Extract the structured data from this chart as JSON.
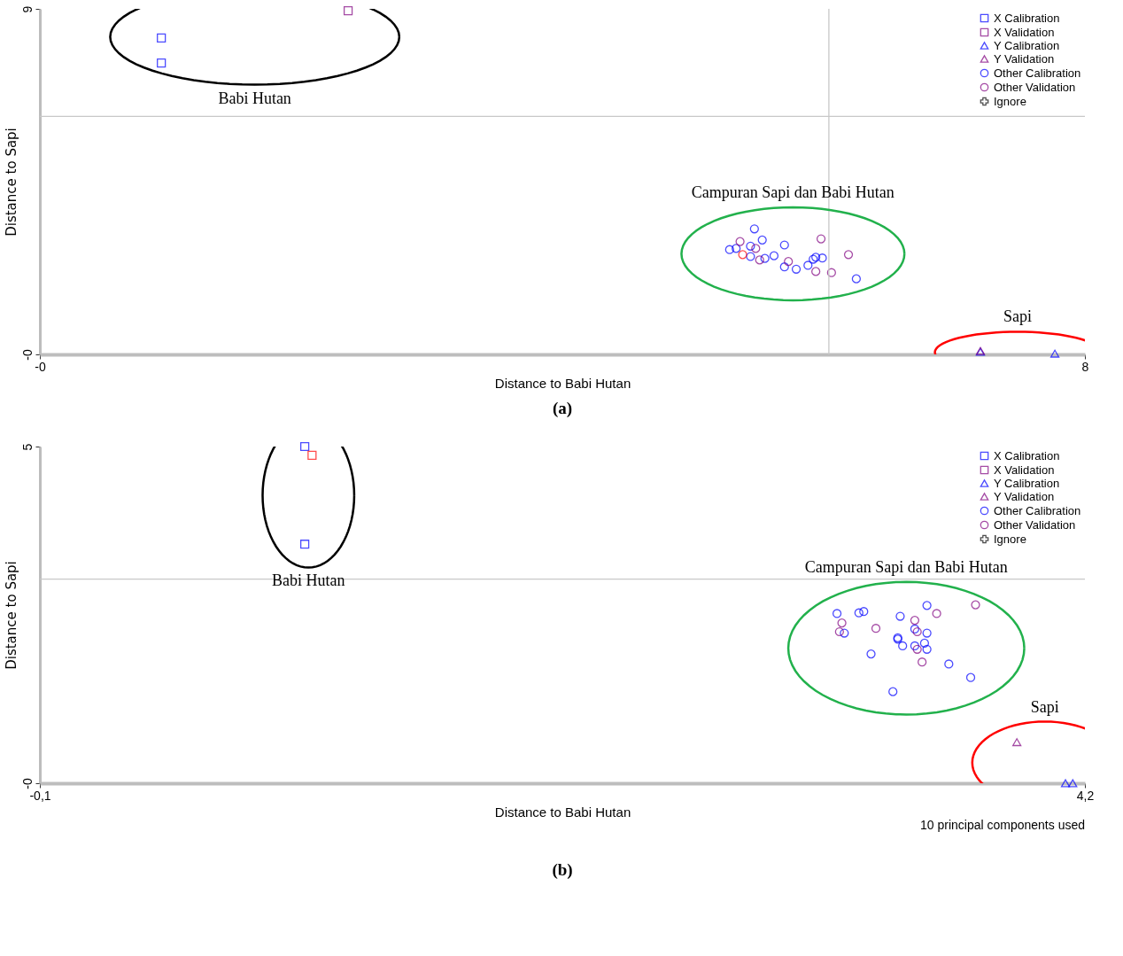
{
  "chart_data": [
    {
      "type": "scatter",
      "title": "(a)",
      "xlabel": "Distance to Babi Hutan",
      "ylabel": "Distance to Sapi",
      "xlim": [
        0,
        8
      ],
      "xticks": [
        {
          "value": 0,
          "label": "-0"
        },
        8
      ],
      "ylim": [
        0,
        9
      ],
      "yticks": [
        {
          "value": 0,
          "label": "-0"
        },
        9
      ],
      "grid": false,
      "legend": "top right",
      "ref_lines": [
        {
          "axis": "y",
          "value": 6.2,
          "color": "#c8c8c8"
        },
        {
          "axis": "x",
          "value": 6.04,
          "color": "#c8c8c8"
        }
      ],
      "annotations": [
        "Babi Hutan",
        "Campuran Sapi dan Babi Hutan",
        "Sapi"
      ],
      "series": [
        {
          "name": "X Calibration",
          "color": "#0000ff",
          "marker": "square",
          "x": [
            0.93,
            0.93
          ],
          "values": [
            8.24,
            7.59
          ]
        },
        {
          "name": "X Validation",
          "color": "#800080",
          "marker": "square",
          "x": [
            2.36
          ],
          "values": [
            8.95
          ]
        },
        {
          "name": "Y Calibration",
          "color": "#0000ff",
          "marker": "triangle",
          "x": [
            7.2,
            7.77
          ],
          "values": [
            0.07,
            0.02
          ]
        },
        {
          "name": "Y Validation",
          "color": "#800080",
          "marker": "triangle",
          "x": [
            7.2
          ],
          "values": [
            0.09
          ]
        },
        {
          "name": "Other Calibration",
          "color": "#0000ff",
          "marker": "circle",
          "x": [
            5.47,
            5.53,
            5.28,
            5.33,
            5.44,
            5.44,
            5.55,
            5.62,
            5.7,
            5.7,
            5.79,
            5.88,
            5.92,
            5.94,
            5.99,
            6.25
          ],
          "values": [
            3.27,
            2.98,
            2.73,
            2.76,
            2.82,
            2.55,
            2.5,
            2.57,
            2.85,
            2.28,
            2.22,
            2.32,
            2.48,
            2.53,
            2.51,
            1.97
          ]
        },
        {
          "name": "Other Validation",
          "color": "#800080",
          "marker": "circle",
          "x": [
            5.36,
            5.48,
            5.51,
            5.73,
            5.98,
            5.94,
            6.06,
            6.19
          ],
          "values": [
            2.94,
            2.76,
            2.46,
            2.42,
            3.01,
            2.16,
            2.13,
            2.6
          ]
        },
        {
          "name": "Ignore",
          "color": "#000000",
          "marker": "cross"
        },
        {
          "color": "#ff0000",
          "marker": "circle",
          "x": [
            5.38
          ],
          "values": [
            2.6
          ]
        }
      ]
    },
    {
      "type": "scatter",
      "title": "(b)",
      "xlabel": "Distance to Babi Hutan",
      "ylabel": "Distance to Sapi",
      "xlim": [
        -0.1,
        4.2
      ],
      "xticks": [
        {
          "value": -0.1,
          "label": "-0,1"
        },
        {
          "value": 4.2,
          "label": "4,2"
        }
      ],
      "ylim": [
        0,
        5
      ],
      "yticks": [
        {
          "value": 0,
          "label": "-0"
        },
        5
      ],
      "grid": false,
      "legend": "top right",
      "ref_lines": [
        {
          "axis": "y",
          "value": 3.03,
          "color": "#c8c8c8"
        }
      ],
      "annotations": [
        "Babi Hutan",
        "Campuran Sapi dan Babi Hutan",
        "Sapi"
      ],
      "subtitle": "10 principal components used",
      "series": [
        {
          "name": "X Calibration",
          "color": "#0000ff",
          "marker": "square",
          "x": [
            0.99,
            0.99
          ],
          "values": [
            5.0,
            3.55
          ]
        },
        {
          "name": "X Validation",
          "color": "#800080",
          "marker": "square"
        },
        {
          "name": "Y Calibration",
          "color": "#0000ff",
          "marker": "triangle",
          "x": [
            4.12,
            4.15
          ],
          "values": [
            0.0,
            0.0
          ]
        },
        {
          "name": "Y Validation",
          "color": "#800080",
          "marker": "triangle",
          "x": [
            3.92
          ],
          "values": [
            0.61
          ]
        },
        {
          "name": "Other Calibration",
          "color": "#0000ff",
          "marker": "circle",
          "x": [
            3.18,
            3.27,
            3.29,
            3.21,
            3.44,
            3.55,
            3.43,
            3.43,
            3.45,
            3.5,
            3.55,
            3.5,
            3.54,
            3.55,
            3.32,
            3.64,
            3.73,
            3.41
          ],
          "values": [
            2.52,
            2.53,
            2.55,
            2.23,
            2.48,
            2.64,
            2.14,
            2.16,
            2.04,
            2.29,
            2.23,
            2.04,
            2.08,
            1.99,
            1.92,
            1.77,
            1.57,
            1.36
          ]
        },
        {
          "name": "Other Validation",
          "color": "#800080",
          "marker": "circle",
          "x": [
            3.2,
            3.19,
            3.34,
            3.5,
            3.51,
            3.59,
            3.75,
            3.51,
            3.53
          ],
          "values": [
            2.38,
            2.25,
            2.3,
            2.42,
            2.25,
            2.52,
            2.65,
            1.99,
            1.8
          ]
        },
        {
          "name": "Ignore",
          "color": "#000000",
          "marker": "cross"
        },
        {
          "color": "#ff0000",
          "marker": "square",
          "x": [
            1.02
          ],
          "values": [
            4.87
          ]
        }
      ]
    }
  ]
}
